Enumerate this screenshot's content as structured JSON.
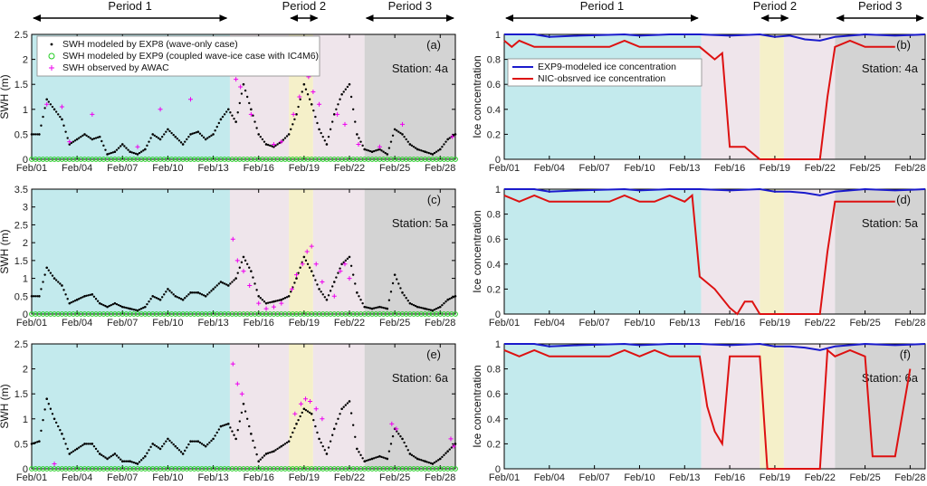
{
  "figure": {
    "periods": [
      {
        "label": "Period 1",
        "from": 1,
        "to": 14
      },
      {
        "label": "Period 2",
        "from": 18,
        "to": 20
      },
      {
        "label": "Period 3",
        "from": 23,
        "to": 29
      }
    ],
    "x_ticks": [
      "Feb/01",
      "Feb/04",
      "Feb/07",
      "Feb/10",
      "Feb/13",
      "Feb/16",
      "Feb/19",
      "Feb/22",
      "Feb/25",
      "Feb/28"
    ],
    "x_tick_days": [
      1,
      4,
      7,
      10,
      13,
      16,
      19,
      22,
      25,
      28
    ],
    "shading": [
      {
        "from": 1,
        "to": 14.1,
        "color": "#b8e6ea"
      },
      {
        "from": 14.1,
        "to": 18,
        "color": "#ece0e8"
      },
      {
        "from": 18,
        "to": 19.6,
        "color": "#f3edc0"
      },
      {
        "from": 19.6,
        "to": 23,
        "color": "#ece0e8"
      },
      {
        "from": 23,
        "to": 29,
        "color": "#cbcbcb"
      }
    ],
    "colors": {
      "exp8": "#000000",
      "exp9": "#22cc22",
      "awac": "#ee00ee",
      "model_ice": "#1a1acc",
      "nic_ice": "#dd1111"
    }
  },
  "chart_data": [
    {
      "id": "a",
      "type": "scatter",
      "panel_label": "(a)",
      "station": "Station: 4a",
      "ylabel": "SWH (m)",
      "xlim": [
        1,
        29
      ],
      "ylim": [
        0,
        2.5
      ],
      "y_ticks": [
        "0",
        "0.5",
        "1",
        "1.5",
        "2",
        "2.5"
      ],
      "y_tick_values": [
        0,
        0.5,
        1,
        1.5,
        2,
        2.5
      ],
      "legend": [
        "SWH modeled by EXP8 (wave-only case)",
        "SWH modeled by EXP9 (coupled wave-ice case with IC4M6)",
        "SWH observed by AWAC"
      ],
      "series": [
        {
          "name": "SWH modeled by EXP8 (wave-only case)",
          "x": [
            1,
            1.5,
            2,
            2.5,
            3,
            3.5,
            4,
            4.5,
            5,
            5.5,
            6,
            6.5,
            7,
            7.5,
            8,
            8.5,
            9,
            9.5,
            10,
            10.5,
            11,
            11.5,
            12,
            12.5,
            13,
            13.5,
            14,
            14.5,
            15,
            15.5,
            16,
            16.5,
            17,
            17.5,
            18,
            18.5,
            19,
            19.5,
            20,
            20.5,
            21,
            21.5,
            22,
            22.5,
            23,
            23.5,
            24,
            24.5,
            25,
            25.5,
            26,
            26.5,
            27,
            27.5,
            28,
            28.5,
            29
          ],
          "y": [
            0.5,
            0.5,
            1.2,
            1.0,
            0.8,
            0.3,
            0.4,
            0.5,
            0.4,
            0.45,
            0.1,
            0.15,
            0.3,
            0.15,
            0.1,
            0.2,
            0.5,
            0.4,
            0.6,
            0.45,
            0.3,
            0.5,
            0.55,
            0.4,
            0.5,
            0.8,
            1.0,
            0.75,
            1.5,
            1.0,
            0.5,
            0.3,
            0.25,
            0.35,
            0.5,
            0.9,
            1.5,
            1.1,
            0.6,
            0.3,
            0.9,
            1.3,
            1.5,
            0.5,
            0.2,
            0.15,
            0.2,
            0.1,
            0.6,
            0.5,
            0.3,
            0.2,
            0.15,
            0.1,
            0.2,
            0.4,
            0.5
          ]
        },
        {
          "name": "SWH modeled by EXP9 (coupled wave-ice case with IC4M6)",
          "x": [
            1,
            29
          ],
          "y": [
            0,
            0
          ]
        },
        {
          "name": "SWH observed by AWAC",
          "x": [
            2,
            3,
            3.5,
            5,
            8,
            9.5,
            11.5,
            14.5,
            14.8,
            15.5,
            17,
            17.5,
            18.3,
            18.7,
            19,
            19.3,
            19.6,
            20,
            21.2,
            21.7,
            22.6,
            24,
            25.5,
            28.8
          ],
          "y": [
            1.1,
            1.05,
            0.35,
            0.9,
            0.25,
            1.0,
            1.2,
            1.6,
            1.45,
            0.9,
            0.3,
            0.35,
            0.9,
            1.25,
            1.75,
            1.65,
            1.35,
            1.1,
            0.9,
            0.7,
            0.3,
            0.25,
            0.7,
            0.45
          ]
        }
      ]
    },
    {
      "id": "b",
      "type": "line",
      "panel_label": "(b)",
      "station": "Station: 4a",
      "ylabel": "Ice concentration",
      "xlim": [
        1,
        29
      ],
      "ylim": [
        0,
        1
      ],
      "y_ticks": [
        "0",
        "0.2",
        "0.4",
        "0.6",
        "0.8",
        "1"
      ],
      "y_tick_values": [
        0,
        0.2,
        0.4,
        0.6,
        0.8,
        1
      ],
      "legend": [
        "EXP9-modeled ice concentration",
        "NIC-obsrved ice concentration"
      ],
      "series": [
        {
          "name": "EXP9-modeled ice concentration",
          "x": [
            1,
            3,
            4,
            6,
            9,
            10,
            12,
            14,
            16,
            18,
            19,
            20,
            21,
            22,
            23,
            25,
            27,
            29
          ],
          "y": [
            1.0,
            1.0,
            0.98,
            0.99,
            1.0,
            0.99,
            1.0,
            1.0,
            0.99,
            1.0,
            0.98,
            0.99,
            0.96,
            0.95,
            0.98,
            1.0,
            0.99,
            1.0
          ]
        },
        {
          "name": "NIC-obsrved ice concentration",
          "x": [
            1,
            1.5,
            2,
            3,
            4,
            5,
            6,
            7,
            8,
            9,
            10,
            11,
            12,
            13,
            14,
            14.5,
            15,
            15.5,
            16,
            17,
            18,
            19,
            20,
            21,
            22,
            22.5,
            23,
            24,
            25,
            26,
            27
          ],
          "y": [
            0.95,
            0.9,
            0.95,
            0.9,
            0.9,
            0.9,
            0.9,
            0.9,
            0.9,
            0.95,
            0.9,
            0.9,
            0.9,
            0.9,
            0.9,
            0.85,
            0.8,
            0.85,
            0.1,
            0.1,
            0.0,
            0.0,
            0.0,
            0.0,
            0.0,
            0.5,
            0.9,
            0.95,
            0.9,
            0.9,
            0.9
          ]
        }
      ]
    },
    {
      "id": "c",
      "type": "scatter",
      "panel_label": "(c)",
      "station": "Station: 5a",
      "ylabel": "SWH (m)",
      "xlim": [
        1,
        29
      ],
      "ylim": [
        0,
        3.5
      ],
      "y_ticks": [
        "0",
        "0.5",
        "1",
        "1.5",
        "2",
        "2.5",
        "3",
        "3.5"
      ],
      "y_tick_values": [
        0,
        0.5,
        1,
        1.5,
        2,
        2.5,
        3,
        3.5
      ],
      "legend": [],
      "series": [
        {
          "name": "SWH modeled by EXP8 (wave-only case)",
          "x": [
            1,
            1.5,
            2,
            2.5,
            3,
            3.5,
            4,
            4.5,
            5,
            5.5,
            6,
            6.5,
            7,
            7.5,
            8,
            8.5,
            9,
            9.5,
            10,
            10.5,
            11,
            11.5,
            12,
            12.5,
            13,
            13.5,
            14,
            14.5,
            15,
            15.5,
            16,
            16.5,
            17,
            17.5,
            18,
            18.5,
            19,
            19.5,
            20,
            20.5,
            21,
            21.5,
            22,
            22.5,
            23,
            23.5,
            24,
            24.5,
            25,
            25.5,
            26,
            26.5,
            27,
            27.5,
            28,
            28.5,
            29
          ],
          "y": [
            0.5,
            0.5,
            1.3,
            1.0,
            0.8,
            0.3,
            0.4,
            0.5,
            0.55,
            0.3,
            0.2,
            0.3,
            0.2,
            0.15,
            0.1,
            0.2,
            0.5,
            0.4,
            0.7,
            0.5,
            0.4,
            0.6,
            0.6,
            0.5,
            0.7,
            0.9,
            0.8,
            1.0,
            1.6,
            1.2,
            0.5,
            0.3,
            0.35,
            0.4,
            0.5,
            1.0,
            1.6,
            1.2,
            0.7,
            0.4,
            0.9,
            1.4,
            1.6,
            0.6,
            0.2,
            0.15,
            0.2,
            0.15,
            1.1,
            0.6,
            0.3,
            0.2,
            0.15,
            0.1,
            0.2,
            0.4,
            0.5
          ]
        },
        {
          "name": "SWH modeled by EXP9 (coupled wave-ice case with IC4M6)",
          "x": [
            1,
            29
          ],
          "y": [
            0,
            0
          ]
        },
        {
          "name": "SWH observed by AWAC",
          "x": [
            14.3,
            14.6,
            15,
            15.4,
            16,
            16.5,
            17,
            17.5,
            18.2,
            18.5,
            18.9,
            19.2,
            19.5,
            19.8,
            20.2,
            21,
            21.4,
            21.7,
            22
          ],
          "y": [
            2.1,
            1.5,
            1.2,
            0.8,
            0.3,
            0.15,
            0.2,
            0.3,
            0.7,
            1.1,
            1.4,
            1.75,
            1.9,
            1.4,
            0.9,
            0.5,
            1.2,
            1.4,
            1.0
          ]
        }
      ]
    },
    {
      "id": "d",
      "type": "line",
      "panel_label": "(d)",
      "station": "Station: 5a",
      "ylabel": "Ice concentration",
      "xlim": [
        1,
        29
      ],
      "ylim": [
        0,
        1
      ],
      "y_ticks": [
        "0",
        "0.2",
        "0.4",
        "0.6",
        "0.8",
        "1"
      ],
      "y_tick_values": [
        0,
        0.2,
        0.4,
        0.6,
        0.8,
        1
      ],
      "legend": [],
      "series": [
        {
          "name": "EXP9-modeled ice concentration",
          "x": [
            1,
            3,
            4,
            6,
            9,
            10,
            12,
            14,
            16,
            18,
            19,
            20,
            21,
            22,
            23,
            25,
            27,
            29
          ],
          "y": [
            1.0,
            1.0,
            0.98,
            0.99,
            1.0,
            0.99,
            1.0,
            1.0,
            0.99,
            1.0,
            0.98,
            0.98,
            0.97,
            0.95,
            0.98,
            1.0,
            0.99,
            1.0
          ]
        },
        {
          "name": "NIC-obsrved ice concentration",
          "x": [
            1,
            2,
            3,
            4,
            5,
            6,
            7,
            8,
            9,
            10,
            11,
            12,
            13,
            13.5,
            14,
            14.5,
            15,
            16,
            16.5,
            17,
            17.5,
            18,
            19,
            20,
            21,
            22,
            22.5,
            23,
            24,
            25,
            26,
            27
          ],
          "y": [
            0.95,
            0.9,
            0.95,
            0.9,
            0.9,
            0.9,
            0.9,
            0.9,
            0.95,
            0.9,
            0.9,
            0.95,
            0.9,
            0.95,
            0.3,
            0.25,
            0.2,
            0.05,
            0.0,
            0.1,
            0.1,
            0.0,
            0.0,
            0.0,
            0.0,
            0.0,
            0.5,
            0.9,
            0.9,
            0.9,
            0.9,
            0.9
          ]
        }
      ]
    },
    {
      "id": "e",
      "type": "scatter",
      "panel_label": "(e)",
      "station": "Station: 6a",
      "ylabel": "SWH (m)",
      "xlim": [
        1,
        29
      ],
      "ylim": [
        0,
        2.5
      ],
      "y_ticks": [
        "0",
        "0.5",
        "1",
        "1.5",
        "2",
        "2.5"
      ],
      "y_tick_values": [
        0,
        0.5,
        1,
        1.5,
        2,
        2.5
      ],
      "legend": [],
      "series": [
        {
          "name": "SWH modeled by EXP8 (wave-only case)",
          "x": [
            1,
            1.5,
            2,
            2.5,
            3,
            3.5,
            4,
            4.5,
            5,
            5.5,
            6,
            6.5,
            7,
            7.5,
            8,
            8.5,
            9,
            9.5,
            10,
            10.5,
            11,
            11.5,
            12,
            12.5,
            13,
            13.5,
            14,
            14.5,
            15,
            15.5,
            16,
            16.5,
            17,
            17.5,
            18,
            18.5,
            19,
            19.5,
            20,
            20.5,
            21,
            21.5,
            22,
            22.5,
            23,
            23.5,
            24,
            24.5,
            25,
            25.5,
            26,
            26.5,
            27,
            27.5,
            28,
            28.5,
            29
          ],
          "y": [
            0.5,
            0.55,
            1.4,
            1.0,
            0.7,
            0.3,
            0.4,
            0.5,
            0.5,
            0.3,
            0.2,
            0.3,
            0.15,
            0.15,
            0.1,
            0.25,
            0.5,
            0.4,
            0.6,
            0.45,
            0.3,
            0.55,
            0.55,
            0.45,
            0.6,
            0.85,
            0.9,
            0.6,
            1.3,
            0.7,
            0.15,
            0.3,
            0.35,
            0.45,
            0.55,
            0.9,
            1.2,
            1.1,
            0.6,
            0.3,
            0.8,
            1.2,
            1.35,
            0.4,
            0.15,
            0.2,
            0.25,
            0.2,
            0.8,
            0.6,
            0.3,
            0.2,
            0.15,
            0.1,
            0.2,
            0.35,
            0.5
          ]
        },
        {
          "name": "SWH modeled by EXP9 (coupled wave-ice case with IC4M6)",
          "x": [
            1,
            29
          ],
          "y": [
            0,
            0
          ]
        },
        {
          "name": "SWH observed by AWAC",
          "x": [
            2.5,
            14.3,
            14.6,
            14.9,
            18.4,
            18.8,
            19.1,
            19.4,
            19.8,
            20.2,
            24.8,
            25.1,
            28.7,
            28.9
          ],
          "y": [
            0.1,
            2.1,
            1.7,
            1.5,
            1.1,
            1.3,
            1.4,
            1.35,
            1.2,
            1.0,
            0.9,
            0.8,
            0.6,
            0.45
          ]
        }
      ]
    },
    {
      "id": "f",
      "type": "line",
      "panel_label": "(f)",
      "station": "Station: 6a",
      "ylabel": "Ice concentration",
      "xlim": [
        1,
        29
      ],
      "ylim": [
        0,
        1
      ],
      "y_ticks": [
        "0",
        "0.2",
        "0.4",
        "0.6",
        "0.8",
        "1"
      ],
      "y_tick_values": [
        0,
        0.2,
        0.4,
        0.6,
        0.8,
        1
      ],
      "legend": [],
      "series": [
        {
          "name": "EXP9-modeled ice concentration",
          "x": [
            1,
            3,
            4,
            6,
            9,
            10,
            12,
            14,
            16,
            18,
            19,
            20,
            21,
            22,
            23,
            25,
            27,
            29
          ],
          "y": [
            1.0,
            1.0,
            0.98,
            0.99,
            1.0,
            0.99,
            1.0,
            1.0,
            0.99,
            1.0,
            0.98,
            0.98,
            0.97,
            0.95,
            0.98,
            1.0,
            0.99,
            1.0
          ]
        },
        {
          "name": "NIC-obsrved ice concentration",
          "x": [
            1,
            2,
            3,
            4,
            5,
            6,
            7,
            8,
            9,
            10,
            11,
            12,
            13,
            14,
            14.5,
            15,
            15.5,
            16,
            17,
            18,
            18.5,
            19,
            20,
            21,
            22,
            22.5,
            23,
            24,
            25,
            25.5,
            26,
            27,
            28
          ],
          "y": [
            0.95,
            0.9,
            0.95,
            0.9,
            0.9,
            0.9,
            0.9,
            0.9,
            0.95,
            0.9,
            0.95,
            0.9,
            0.9,
            0.9,
            0.5,
            0.3,
            0.2,
            0.9,
            0.9,
            0.9,
            0.0,
            0.0,
            0.0,
            0.0,
            0.0,
            0.95,
            0.9,
            0.95,
            0.9,
            0.1,
            0.1,
            0.1,
            0.8
          ]
        }
      ]
    }
  ]
}
